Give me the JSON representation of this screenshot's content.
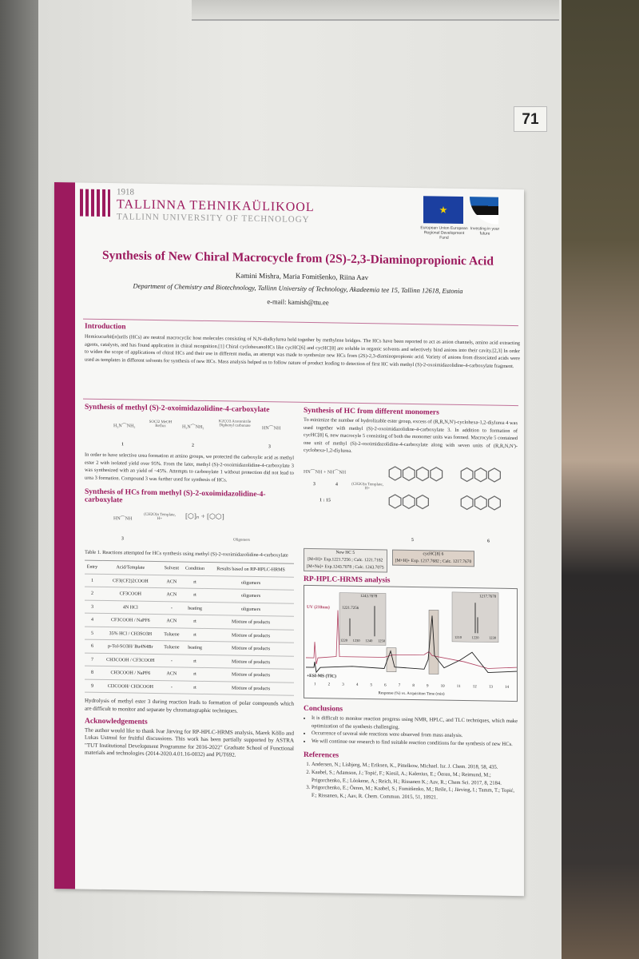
{
  "tag_number": "71",
  "header": {
    "year": "1918",
    "university_et": "TALLINNA TEHNIKAÜLIKOOL",
    "university_en": "TALLINN UNIVERSITY OF TECHNOLOGY",
    "eu_logo_caption": "European Union European Regional Development Fund",
    "ee_logo_caption": "Investing in your future",
    "title": "Synthesis of New Chiral Macrocycle from (2S)-2,3-Diaminopropionic Acid",
    "authors": "Kamini Mishra, Maria Fomitšenko, Riina Aav",
    "department": "Department of Chemistry and Biotechnology, Tallinn University of Technology, Akadeemia tee 15, Tallinn 12618, Estonia",
    "email": "e-mail: kamish@ttu.ee"
  },
  "introduction": {
    "heading": "Introduction",
    "text": "Hemicucurbit[n]urils (HCs) are neutral macrocyclic host molecules consisting of N,N-dialkylurea held together by methylene bridges. The HCs have been reported to act as anion channels, amino acid extracting agents, catalysts, and has found application in chiral recognition.[1] Chiral cyclohexanoHCs like cycHC[6] and cycHC[8] are soluble in organic solvents and selectively bind anions into their cavity.[2,3] In order to widen the scope of applications of chiral HCs and their use in different media, an attempt was made to synthesize new HCs from (2S)-2,3-diaminopropionic acid. Variety of anions from dissociated acids were used as templates in different solvents for synthesis of new HCs. Mass analysis helped us to follow nature of product leading to detection of first HC with methyl (S)-2-oxoimidazolidine-4-carboxylate fragment."
  },
  "section1": {
    "heading": "Synthesis of  methyl (S)-2-oxoimidazolidine-4-carboxylate",
    "scheme": {
      "reagents1": "SOCl2 MeOH Reflux",
      "reagents2": "K2CO3 Acetonitrile Diphenyl carbonate",
      "labels": [
        "1",
        "2",
        "3"
      ]
    },
    "text": "In order to have selective urea formation at amino groups, we protected the carboxylic acid as methyl ester 2 with isolated yield over 95%. From the later,  methyl (S)-2-oxoimidazolidine-4-carboxylate 3 was synthesized with an yield of ~45%. Attempts to carbonylate 1 without protection did not lead to urea 3 formation. Compound 3 was further used for synthesis of HCs."
  },
  "section2": {
    "heading": "Synthesis of HCs from methyl (S)-2-oxoimidazolidine-4-carboxylate",
    "scheme": {
      "reagents": "(CH2O)n Template, H+",
      "label": "3",
      "product": "Oligomers"
    }
  },
  "table": {
    "caption": "Table 1. Reactions attempted for HCs synthesis using methyl (S)-2-oxoimidazolidine-4-carboxylate",
    "columns": [
      "Entry",
      "Acid/Template",
      "Solvent",
      "Condition",
      "Results based on RP-HPLC-HRMS"
    ],
    "rows": [
      [
        "1",
        "CF3(CF2)2COOH",
        "ACN",
        "rt",
        "oligomers"
      ],
      [
        "2",
        "CF3COOH",
        "ACN",
        "rt",
        "oligomers"
      ],
      [
        "3",
        "4N HCl",
        "-",
        "heating",
        "oligomers"
      ],
      [
        "4",
        "CF3COOH / NaPF6",
        "ACN",
        "rt",
        "Mixture of products"
      ],
      [
        "5",
        "35% HCl / CH3SO3H",
        "Toluene",
        "rt",
        "Mixture of products"
      ],
      [
        "6",
        "p-Tol-SO3H/ Bu4N4Br",
        "Toluene",
        "heating",
        "Mixture of products"
      ],
      [
        "7",
        "CH3COOH / CF3COOH",
        "-",
        "rt",
        "Mixture of products"
      ],
      [
        "8",
        "CH3COOH / NaPF6",
        "ACN",
        "rt",
        "Mixture of products"
      ],
      [
        "9",
        "Cl3COOH/ CH3COOH",
        "-",
        "rt",
        "Mixture of products"
      ]
    ]
  },
  "hydrolysis_text": "Hydrolysis of  methyl ester 3 during reaction leads to formation of polar compounds which are difficult to monitor and separate by chromatographic techniques.",
  "acknowledgements": {
    "heading": "Acknowledgements",
    "text": "The author would like to thank Ivar Järving for RP-HPLC-HRMS analysis, Marek Kõllo and Lukas Ustrnul for fruitful discussions. This work has been partially supported by ASTRA \"TUT Institutional Development Programme for 2016-2022\" Graduate School of Functional materials and technologies (2014-2020.4.01.16-0032) and PUT692."
  },
  "section3": {
    "heading": "Synthesis of HC from different monomers",
    "text": "To minimize the number of hydrolizable ester group, excess of (R,R,N,N')-cyclohexa-1,2-diylurea 4 was used together with methyl (S)-2-oxoimidazolidine-4-carboxylate 3. In addition to formation of cycHC[8] 6, new macrocyle 5 consisting of both the monomer units was formed. Macrocyle 5 contained one unit of methyl (S)-2-oxoimidazolidine-4-carboxylate along with seven units of (R,R,N,N')-cyclohexa-1,2-diylurea.",
    "scheme": {
      "reagents": "(CH2O)n Template, H+",
      "labels": [
        "3",
        "4",
        "1 : 15",
        "5",
        "6"
      ]
    },
    "box_new": {
      "title": "New HC 5",
      "line1": "[M+H]+ Exp.1221.7256 ; Calc. 1221.7182",
      "line2": "[M+Na]+ Exp.1243.7078 ; Calc. 1243.7075"
    },
    "box_cyc": {
      "title": "cycHC[8] 6",
      "line1": "[M+H]+ Exp. 1217.7682 ; Calc. 1217.7670"
    }
  },
  "hplc": {
    "heading": "RP-HPLC-HRMS analysis",
    "uv_label": "UV (210nm)",
    "ms_label": "+ESI-MS (TIC)",
    "inset1": {
      "peaks": [
        "1221.7256",
        "1243.7078"
      ],
      "ticks": [
        "1220",
        "1230",
        "1240",
        "1250"
      ]
    },
    "inset2": {
      "peak": "1217.7670",
      "ticks": [
        "1210",
        "1220",
        "1230"
      ]
    },
    "x_ticks": [
      "1",
      "2",
      "3",
      "4",
      "5",
      "6",
      "7",
      "8",
      "9",
      "10",
      "11",
      "12",
      "13",
      "14"
    ],
    "xlabel": "Response (%) vs. Acquisition Time (min)"
  },
  "conclusions": {
    "heading": "Conclusions",
    "items": [
      "It is difficult to monitor reaction progress using NMR, HPLC, and TLC techniques, which make optimization of the synthesis challenging.",
      "Occurrence of several side reactions were observed from mass analysis.",
      "We will continue our research to find suitable reaction conditions for the synthesis of new HCs."
    ]
  },
  "references": {
    "heading": "References",
    "items": [
      "Andersen, N.; Lisbjerg, M.; Eriksen, K., Pittelkow, Michael. Isr. J. Chem. 2018, 58, 435.",
      "Kaabel, S.; Adamson, J.; Topić, F.; Kiesil, A.; Kalenius, E.; Öeren, M.; Reimund, M.; Prigorchenko, E.; Lõokene, A.; Reich, H.; Rissanen K.; Aav, R.; Chem Sci. 2017, 8, 2184.",
      "Prigorchenko, E.; Öeren, M.; Kaabel, S.; Fomitšenko, M.; Reile, I.; Järving, I.; Tamm, T.; Topić, F.; Rissanen, K.; Aav, R. Chem. Commun. 2015, 51, 10921."
    ]
  },
  "colors": {
    "accent": "#9c1a5e",
    "uv_trace": "#b04060",
    "ms_trace": "#222222"
  }
}
